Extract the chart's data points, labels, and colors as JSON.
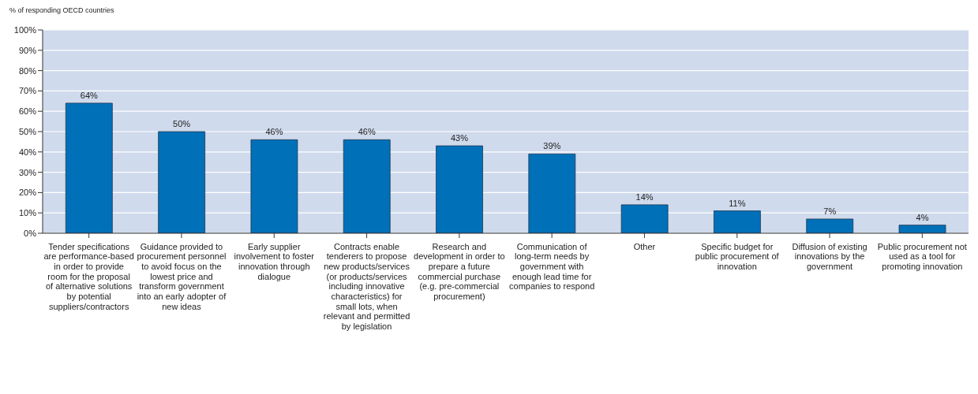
{
  "chart_data": {
    "type": "bar",
    "ylabel": "% of responding OECD countries",
    "categories": [
      "Tender specifications are performance-based in order to provide room for the proposal of alternative solutions by potential suppliers/contractors",
      "Guidance provided to procurement personnel to avoid focus on the lowest price and transform government into an early adopter of new ideas",
      "Early supplier involvement to foster innovation through dialogue",
      "Contracts enable tenderers to propose new products/services (or products/services including innovative characteristics) for small lots, when relevant and permitted by legislation",
      "Research and development in order to prepare a future commercial purchase (e.g. pre-commercial procurement)",
      "Communication of long-term needs by government with enough lead time for companies to respond",
      "Other",
      "Specific budget for public procurement of innovation",
      "Diffusion of existing innovations by the government",
      "Public procurement not used as a tool for promoting innovation"
    ],
    "values": [
      64,
      50,
      46,
      46,
      43,
      39,
      14,
      11,
      7,
      4
    ],
    "value_labels": [
      "64%",
      "50%",
      "46%",
      "46%",
      "43%",
      "39%",
      "14%",
      "11%",
      "7%",
      "4%"
    ],
    "color": "#0070b8",
    "ylim": [
      0,
      100
    ],
    "yticks": [
      {
        "value": 0,
        "label": "0%"
      },
      {
        "value": 10,
        "label": "10%"
      },
      {
        "value": 20,
        "label": "20%"
      },
      {
        "value": 30,
        "label": "30%"
      },
      {
        "value": 40,
        "label": "40%"
      },
      {
        "value": 50,
        "label": "50%"
      },
      {
        "value": 60,
        "label": "60%"
      },
      {
        "value": 70,
        "label": "70%"
      },
      {
        "value": 80,
        "label": "80%"
      },
      {
        "value": 90,
        "label": "90%"
      },
      {
        "value": 100,
        "label": "100%"
      }
    ],
    "grid": "y",
    "legend": false
  }
}
